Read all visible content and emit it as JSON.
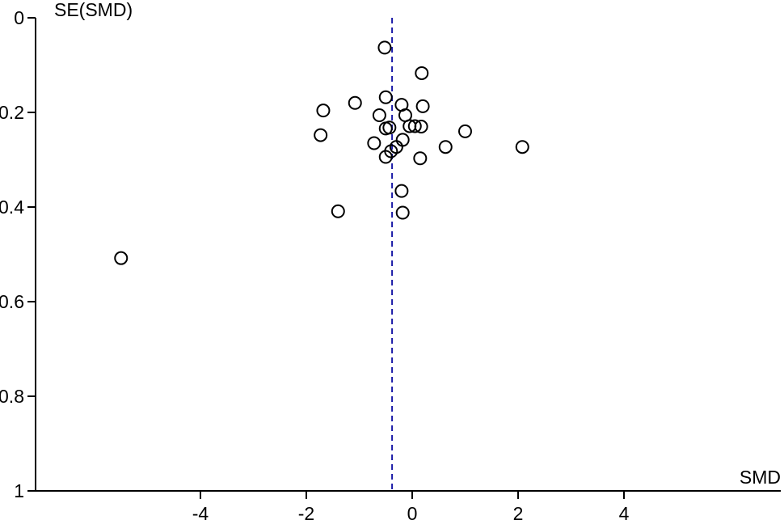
{
  "chart_data": {
    "type": "scatter",
    "title": "",
    "xlabel": "SMD",
    "ylabel": "SE(SMD)",
    "xlim": [
      -7,
      7
    ],
    "ylim": [
      0,
      1
    ],
    "y_inverted": true,
    "xticks": [
      -4,
      -2,
      0,
      2,
      4
    ],
    "yticks": [
      0,
      0.2,
      0.4,
      0.6,
      0.8,
      1
    ],
    "xtick_labels": [
      "-4",
      "-2",
      "0",
      "2",
      "4"
    ],
    "ytick_labels": [
      "0",
      "0.2",
      "0.4",
      "0.6",
      "0.8",
      "1"
    ],
    "grid": false,
    "legend": "none",
    "reference_line": {
      "x": -0.38,
      "style": "dashed",
      "color": "#1a1aa6"
    },
    "marker": {
      "shape": "open-circle",
      "color": "#000000"
    },
    "points": [
      {
        "x": -0.52,
        "y": 0.063
      },
      {
        "x": 0.18,
        "y": 0.117
      },
      {
        "x": -0.5,
        "y": 0.168
      },
      {
        "x": -1.08,
        "y": 0.18
      },
      {
        "x": -1.68,
        "y": 0.196
      },
      {
        "x": -0.2,
        "y": 0.184
      },
      {
        "x": 0.2,
        "y": 0.187
      },
      {
        "x": -0.62,
        "y": 0.206
      },
      {
        "x": -0.13,
        "y": 0.206
      },
      {
        "x": -0.05,
        "y": 0.229
      },
      {
        "x": 0.05,
        "y": 0.229
      },
      {
        "x": 0.17,
        "y": 0.23
      },
      {
        "x": -0.43,
        "y": 0.232
      },
      {
        "x": -0.5,
        "y": 0.234
      },
      {
        "x": 1.0,
        "y": 0.24
      },
      {
        "x": -1.73,
        "y": 0.248
      },
      {
        "x": -0.18,
        "y": 0.258
      },
      {
        "x": -0.72,
        "y": 0.265
      },
      {
        "x": -0.3,
        "y": 0.273
      },
      {
        "x": 0.63,
        "y": 0.273
      },
      {
        "x": 2.08,
        "y": 0.273
      },
      {
        "x": -0.4,
        "y": 0.282
      },
      {
        "x": -0.5,
        "y": 0.294
      },
      {
        "x": 0.15,
        "y": 0.297
      },
      {
        "x": -0.2,
        "y": 0.366
      },
      {
        "x": -1.4,
        "y": 0.409
      },
      {
        "x": -0.18,
        "y": 0.412
      },
      {
        "x": -5.5,
        "y": 0.508
      }
    ]
  }
}
